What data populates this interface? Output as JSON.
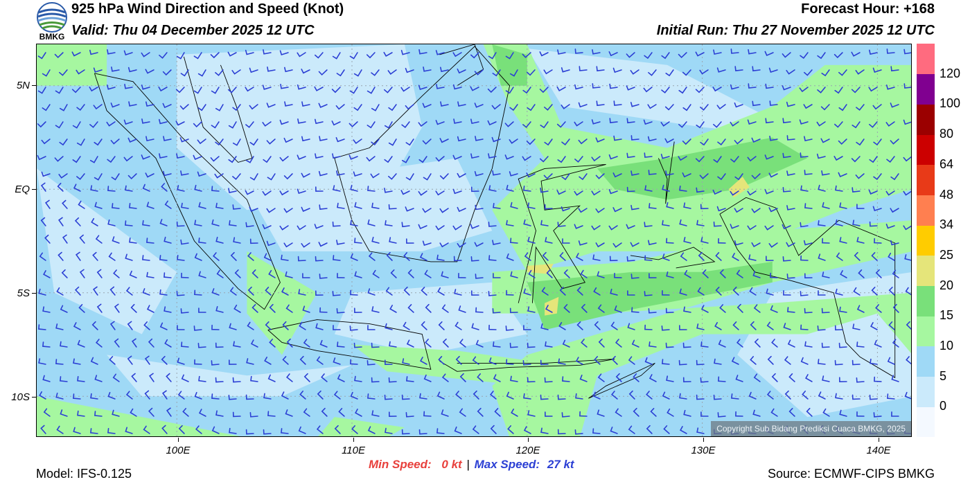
{
  "header": {
    "logo_text": "BMKG",
    "title": "925 hPa Wind Direction and Speed (Knot)",
    "valid": "Valid: Thu 04 December 2025 12 UTC",
    "forecast_hour": "Forecast Hour: +168",
    "initial_run": "Initial Run: Thu 27 November 2025 12 UTC"
  },
  "map": {
    "lat_labels": [
      "5N",
      "EQ",
      "5S",
      "10S"
    ],
    "lon_labels": [
      "100E",
      "110E",
      "120E",
      "130E",
      "140E"
    ],
    "copyright": "Copyright Sub Bidang Prediksi Cuaca BMKG, 2025",
    "lon_range": [
      92,
      142
    ],
    "lat_range": [
      -12,
      7
    ]
  },
  "colorbar": {
    "labels": [
      "0",
      "5",
      "10",
      "15",
      "20",
      "25",
      "34",
      "48",
      "64",
      "80",
      "100",
      "120"
    ],
    "colors": [
      "#f4f9ff",
      "#cbeafb",
      "#9fd9f6",
      "#a6f7a0",
      "#79e07a",
      "#e5e57a",
      "#ffcc00",
      "#ff7f50",
      "#e83a18",
      "#cc0000",
      "#9b0000",
      "#800090",
      "#ff6b7f"
    ]
  },
  "footer": {
    "model": "Model: IFS-0.125",
    "min_label": "Min Speed:",
    "min_value": "0 kt",
    "separator": "|",
    "max_label": "Max Speed:",
    "max_value": "27 kt",
    "source": "Source: ECMWF-CIPS BMKG"
  },
  "colors": {
    "min_speed": "#e8403c",
    "max_speed": "#2b3fd4",
    "barb": "#2b3fd4",
    "coast": "#000000",
    "border": "#8a8a8a",
    "grid": "#9aa5b0"
  }
}
